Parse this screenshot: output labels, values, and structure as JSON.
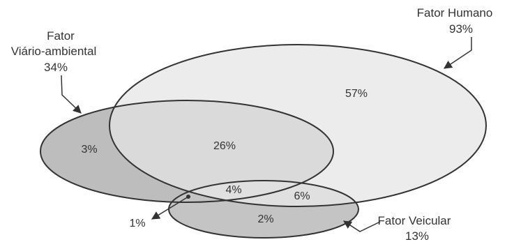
{
  "sets": {
    "human": {
      "name": "Fator Humano",
      "percent": "93%",
      "fill": "#ececec"
    },
    "road": {
      "name_line1": "Fator",
      "name_line2": "Viário-ambiental",
      "percent": "34%",
      "fill": "#bdbdbd"
    },
    "vehicle": {
      "name_line1": "Fator Veicular",
      "percent": "13%",
      "fill": "#c4c4c4"
    }
  },
  "regions": {
    "human_only": "57%",
    "road_only": "3%",
    "human_road": "26%",
    "all_three": "4%",
    "human_vehicle": "6%",
    "vehicle_only": "2%",
    "road_vehicle": "1%"
  },
  "colors": {
    "stroke": "#333333",
    "text": "#333333",
    "background": "#ffffff"
  }
}
